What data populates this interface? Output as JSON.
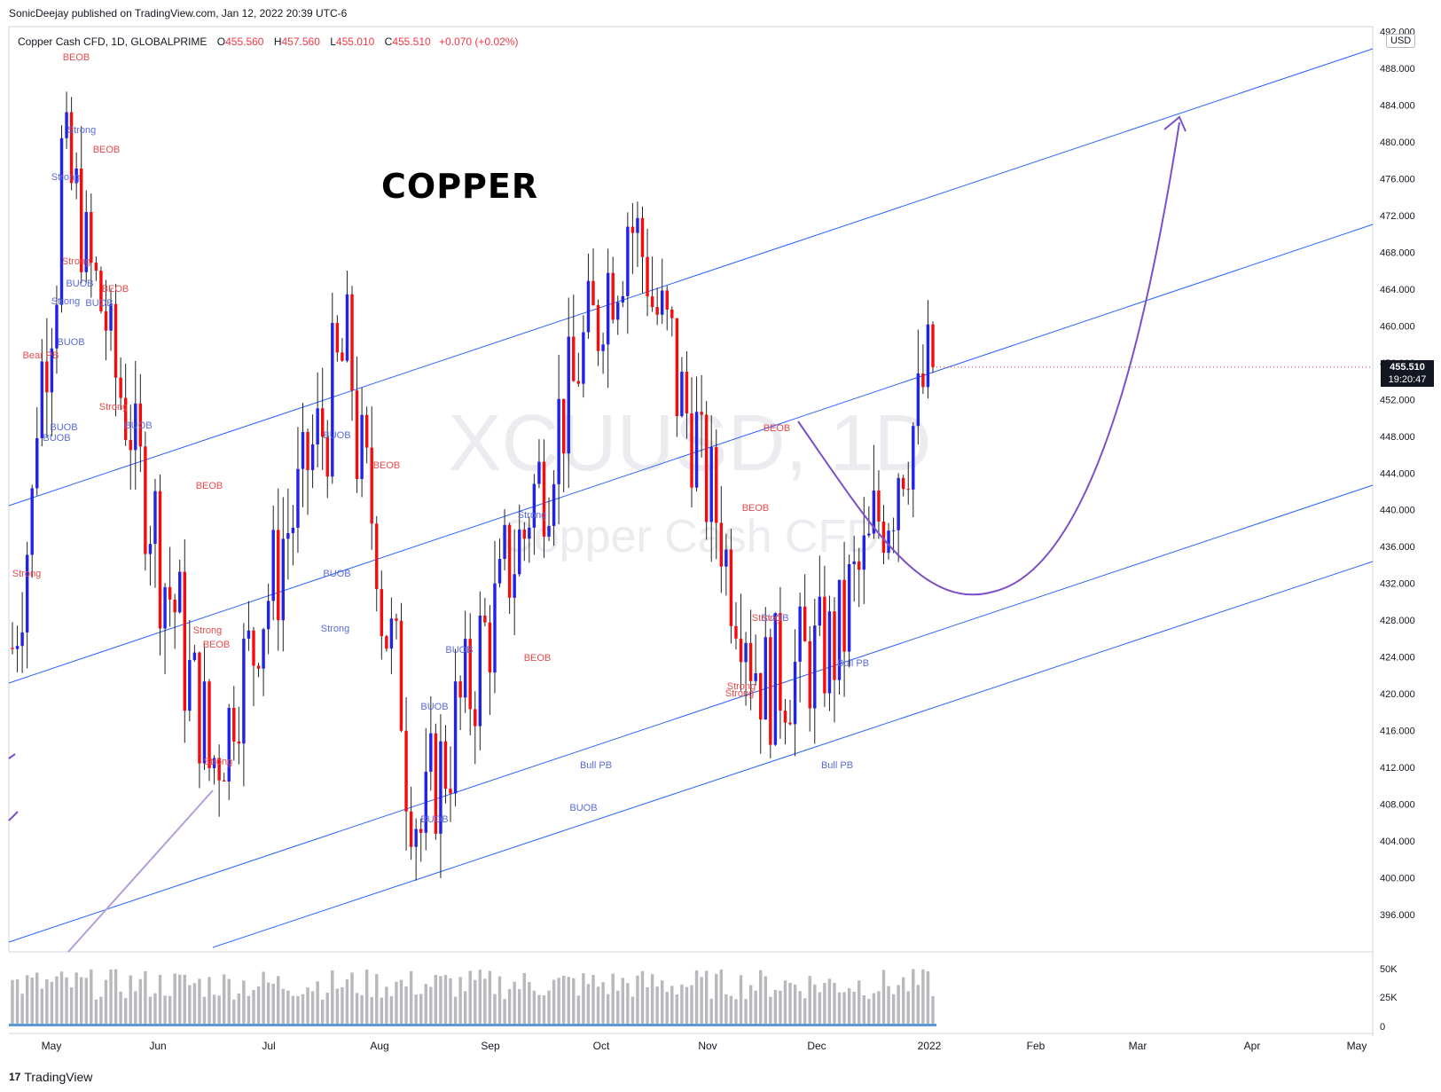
{
  "header": {
    "publish_line": "SonicDeejay published on TradingView.com, Jan 12, 2022 20:39 UTC-6",
    "symbol_desc": "Copper Cash CFD, 1D, GLOBALPRIME",
    "o_label": "O",
    "o_value": "455.560",
    "h_label": "H",
    "h_value": "457.560",
    "l_label": "L",
    "l_value": "455.010",
    "c_label": "C",
    "c_value": "455.510",
    "change": "+0.070 (+0.02%)"
  },
  "annotation_title": "COPPER",
  "watermark": {
    "symbol": "XCUUSD, 1D",
    "name": "Copper Cash CFD"
  },
  "price_scale": {
    "currency": "USD",
    "last_price": "455.510",
    "countdown": "19:20:47"
  },
  "footer": {
    "brand": "TradingView"
  },
  "colors": {
    "up": "#2323e8",
    "down": "#f50d0d",
    "channel": "#2962ff",
    "projection": "#7b4fc9",
    "bullish_label": "#5b6bd6",
    "bearish_label": "#e84b4b"
  },
  "chart_data": {
    "type": "candlestick",
    "x_axis_labels": [
      "May",
      "Jun",
      "Jul",
      "Aug",
      "Sep",
      "Oct",
      "Nov",
      "Dec",
      "2022",
      "Feb",
      "Mar",
      "Apr",
      "May"
    ],
    "y_axis_ticks": [
      "396.000",
      "400.000",
      "404.000",
      "408.000",
      "412.000",
      "416.000",
      "420.000",
      "424.000",
      "428.000",
      "432.000",
      "436.000",
      "440.000",
      "444.000",
      "448.000",
      "452.000",
      "456.000",
      "460.000",
      "464.000",
      "468.000",
      "472.000",
      "476.000",
      "480.000",
      "484.000",
      "488.000",
      "492.000"
    ],
    "ylim": [
      392,
      493
    ],
    "volume_ticks": [
      "0",
      "25K",
      "50K"
    ],
    "candles_anchor": {
      "start": "2021-04-26",
      "trading_days": true
    },
    "key_closes": [
      {
        "date": "2021-05-10",
        "close": 478
      },
      {
        "date": "2021-06-21",
        "close": 412
      },
      {
        "date": "2021-07-29",
        "close": 457
      },
      {
        "date": "2021-08-19",
        "close": 405
      },
      {
        "date": "2021-10-18",
        "close": 472
      },
      {
        "date": "2021-11-25",
        "close": 421
      },
      {
        "date": "2021-12-15",
        "close": 425
      },
      {
        "date": "2022-01-12",
        "close": 455.51
      }
    ],
    "signal_labels": [
      {
        "text": "BEOB",
        "type": "bear"
      },
      {
        "text": "Strong",
        "type": "bull"
      },
      {
        "text": "BEOB",
        "type": "bear"
      },
      {
        "text": "Strong",
        "type": "bull"
      },
      {
        "text": "Strong",
        "type": "bear"
      },
      {
        "text": "BUOB",
        "type": "bull"
      },
      {
        "text": "BEOB",
        "type": "bear"
      },
      {
        "text": "Strong",
        "type": "bull"
      },
      {
        "text": "BUOB",
        "type": "bull"
      },
      {
        "text": "BUOB",
        "type": "bull"
      },
      {
        "text": "Bear PB",
        "type": "bear"
      },
      {
        "text": "Strong",
        "type": "bear"
      },
      {
        "text": "BUOB",
        "type": "bull"
      },
      {
        "text": "BUOB",
        "type": "bull"
      },
      {
        "text": "BUOB",
        "type": "bull"
      },
      {
        "text": "BEOB",
        "type": "bear"
      },
      {
        "text": "BUOB",
        "type": "bull"
      },
      {
        "text": "Strong",
        "type": "bear"
      },
      {
        "text": "BEOB",
        "type": "bear"
      },
      {
        "text": "Strong",
        "type": "bear"
      },
      {
        "text": "Strong",
        "type": "bear"
      },
      {
        "text": "BUOB",
        "type": "bull"
      },
      {
        "text": "Strong",
        "type": "bull"
      },
      {
        "text": "BUOB",
        "type": "bull"
      },
      {
        "text": "BEOB",
        "type": "bear"
      },
      {
        "text": "BUOB",
        "type": "bull"
      },
      {
        "text": "BUOB",
        "type": "bull"
      },
      {
        "text": "Strong",
        "type": "bull"
      },
      {
        "text": "BUOB",
        "type": "bull"
      },
      {
        "text": "BEOB",
        "type": "bear"
      },
      {
        "text": "Strong",
        "type": "bear"
      },
      {
        "text": "BUOB",
        "type": "bull"
      },
      {
        "text": "Bull PB",
        "type": "bull"
      },
      {
        "text": "BEOB",
        "type": "bear"
      },
      {
        "text": "Strong",
        "type": "bear"
      },
      {
        "text": "BEOB",
        "type": "bear"
      },
      {
        "text": "Strong",
        "type": "bear"
      },
      {
        "text": "Bull PB",
        "type": "bull"
      },
      {
        "text": "Bull PB",
        "type": "bull"
      }
    ]
  }
}
